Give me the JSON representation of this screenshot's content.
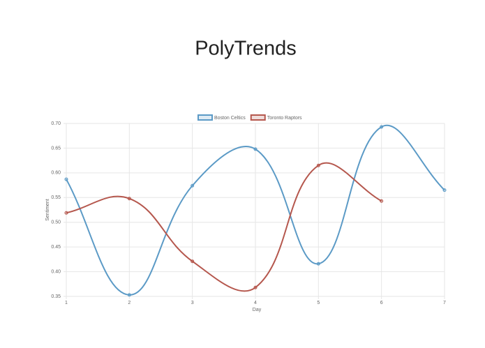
{
  "chart_data": {
    "type": "line",
    "title": "PolyTrends",
    "xlabel": "Day",
    "ylabel": "Sentiment",
    "x": [
      1,
      2,
      3,
      4,
      5,
      6,
      7
    ],
    "series": [
      {
        "name": "Boston Celtics",
        "color": "#5b9ac6",
        "values": [
          0.587,
          0.353,
          0.574,
          0.648,
          0.416,
          0.693,
          0.565
        ]
      },
      {
        "name": "Toronto Raptors",
        "color": "#b5574d",
        "values": [
          0.519,
          0.548,
          0.421,
          0.368,
          0.615,
          0.543,
          null
        ]
      }
    ],
    "xlim": [
      1,
      7
    ],
    "xticks": [
      1,
      2,
      3,
      4,
      5,
      6,
      7
    ],
    "ylim": [
      0.35,
      0.7
    ],
    "yticks": [
      0.35,
      {
        "value": 0.4,
        "label": "0.40"
      },
      0.45,
      {
        "value": 0.5,
        "label": "0.50"
      },
      0.55,
      {
        "value": 0.6,
        "label": "0.60"
      },
      0.65,
      {
        "value": 0.7,
        "label": "0.70"
      }
    ],
    "grid": true,
    "legend": "top"
  }
}
